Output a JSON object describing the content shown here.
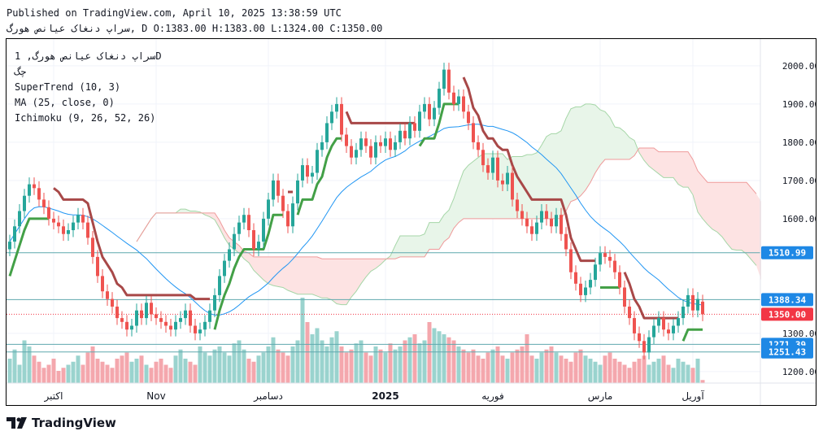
{
  "header": {
    "line1": "Published on TradingView.com, April 10, 2025 13:38:59 UTC",
    "line2": "سراپ دنغاک عیانص هورگ, D O:1383.00 H:1383.00 L:1324.00 C:1350.00"
  },
  "legend": {
    "symbol": "سراپ دنغاک عیانص هورگ, 1D",
    "ticker": "چگ",
    "supertrend": "SuperTrend (10, 3)",
    "ma": "MA (25, close, 0)",
    "ichimoku": "Ichimoku (9, 26, 52, 26)"
  },
  "footer": {
    "brand": "TradingView"
  },
  "colors": {
    "up": "#26a69a",
    "down": "#ef5350",
    "up_vol": "#9ad3ce",
    "down_vol": "#f4a7ad",
    "ma": "#2196f3",
    "st_up": "#43a047",
    "st_down": "#a84848",
    "cloud_green": "#e8f5e9",
    "cloud_red": "#fde3e3",
    "hline": "#5fa8ae",
    "price_tag": "#f23645",
    "level_tag": "#1e88e5"
  },
  "chart_data": {
    "type": "candlestick",
    "title": "سراپ دنغاک عیانص هورگ, 1D",
    "ohlc": {
      "open": 1383.0,
      "high": 1383.0,
      "low": 1324.0,
      "close": 1350.0
    },
    "y_axis": {
      "ticks": [
        2000.0,
        1900.0,
        1800.0,
        1700.0,
        1600.0,
        1300.0,
        1200.0
      ],
      "tick_labels": [
        "2000.00",
        "1900.00",
        "1800.00",
        "1700.00",
        "1600.00",
        "1300.00",
        "1200.00"
      ],
      "range": [
        1170,
        2070
      ]
    },
    "x_axis": {
      "labels": [
        "اکتبر",
        "Nov",
        "دسامبر",
        "2025",
        "فوریه",
        "مارس",
        "آوریل"
      ],
      "label_index": [
        9,
        30,
        53,
        77,
        99,
        121,
        140
      ]
    },
    "price_levels": [
      {
        "value": 1510.99,
        "label": "1510.99",
        "kind": "level"
      },
      {
        "value": 1388.34,
        "label": "1388.34",
        "kind": "level"
      },
      {
        "value": 1350.0,
        "label": "1350.00",
        "kind": "price"
      },
      {
        "value": 1271.39,
        "label": "1271.39",
        "kind": "level"
      },
      {
        "value": 1251.43,
        "label": "1251.43",
        "kind": "level"
      }
    ],
    "closes": [
      1540,
      1580,
      1620,
      1660,
      1690,
      1680,
      1650,
      1630,
      1600,
      1590,
      1580,
      1560,
      1570,
      1590,
      1610,
      1590,
      1550,
      1500,
      1450,
      1410,
      1390,
      1370,
      1340,
      1330,
      1310,
      1320,
      1360,
      1340,
      1380,
      1350,
      1340,
      1330,
      1320,
      1310,
      1330,
      1340,
      1360,
      1320,
      1300,
      1310,
      1330,
      1360,
      1400,
      1450,
      1490,
      1520,
      1560,
      1590,
      1610,
      1570,
      1520,
      1540,
      1600,
      1650,
      1700,
      1660,
      1620,
      1580,
      1640,
      1700,
      1740,
      1710,
      1720,
      1780,
      1800,
      1850,
      1880,
      1900,
      1820,
      1790,
      1760,
      1780,
      1810,
      1790,
      1760,
      1800,
      1790,
      1810,
      1780,
      1800,
      1830,
      1810,
      1850,
      1830,
      1880,
      1900,
      1860,
      1890,
      1940,
      1990,
      1930,
      1900,
      1920,
      1880,
      1850,
      1800,
      1780,
      1740,
      1720,
      1760,
      1700,
      1690,
      1720,
      1650,
      1620,
      1600,
      1580,
      1560,
      1590,
      1620,
      1600,
      1580,
      1610,
      1560,
      1520,
      1460,
      1430,
      1400,
      1420,
      1440,
      1480,
      1510,
      1500,
      1490,
      1460,
      1420,
      1370,
      1340,
      1300,
      1280,
      1250,
      1290,
      1320,
      1340,
      1310,
      1300,
      1320,
      1340,
      1370,
      1400,
      1360,
      1390,
      1350
    ],
    "opens": [
      1520,
      1540,
      1580,
      1620,
      1660,
      1690,
      1680,
      1650,
      1630,
      1600,
      1590,
      1580,
      1560,
      1570,
      1590,
      1610,
      1590,
      1550,
      1500,
      1450,
      1410,
      1390,
      1370,
      1340,
      1330,
      1310,
      1320,
      1360,
      1340,
      1380,
      1350,
      1340,
      1330,
      1320,
      1310,
      1330,
      1340,
      1360,
      1320,
      1300,
      1310,
      1330,
      1360,
      1400,
      1450,
      1490,
      1520,
      1560,
      1590,
      1610,
      1570,
      1520,
      1540,
      1600,
      1650,
      1700,
      1660,
      1620,
      1580,
      1640,
      1700,
      1740,
      1710,
      1720,
      1780,
      1800,
      1850,
      1880,
      1900,
      1820,
      1790,
      1760,
      1780,
      1810,
      1790,
      1760,
      1800,
      1790,
      1810,
      1780,
      1800,
      1830,
      1810,
      1850,
      1830,
      1880,
      1900,
      1860,
      1890,
      1940,
      1990,
      1930,
      1900,
      1920,
      1880,
      1850,
      1800,
      1780,
      1740,
      1720,
      1760,
      1700,
      1690,
      1720,
      1650,
      1620,
      1600,
      1580,
      1560,
      1590,
      1620,
      1600,
      1580,
      1610,
      1560,
      1520,
      1460,
      1430,
      1400,
      1420,
      1440,
      1480,
      1510,
      1500,
      1490,
      1460,
      1420,
      1370,
      1340,
      1300,
      1280,
      1250,
      1290,
      1320,
      1340,
      1310,
      1300,
      1320,
      1340,
      1370,
      1400,
      1360,
      1383
    ],
    "volumes": [
      40,
      55,
      30,
      70,
      60,
      45,
      35,
      25,
      30,
      40,
      20,
      25,
      30,
      35,
      45,
      30,
      50,
      60,
      40,
      35,
      30,
      25,
      40,
      45,
      50,
      35,
      40,
      45,
      30,
      25,
      35,
      40,
      30,
      25,
      45,
      55,
      40,
      35,
      30,
      60,
      50,
      45,
      55,
      60,
      50,
      45,
      65,
      70,
      55,
      40,
      35,
      45,
      50,
      60,
      75,
      55,
      50,
      45,
      60,
      70,
      140,
      100,
      80,
      90,
      70,
      60,
      75,
      85,
      60,
      50,
      55,
      65,
      70,
      50,
      45,
      60,
      55,
      50,
      65,
      55,
      60,
      70,
      75,
      80,
      65,
      70,
      100,
      90,
      85,
      80,
      75,
      70,
      60,
      55,
      50,
      55,
      45,
      40,
      50,
      55,
      60,
      45,
      40,
      50,
      55,
      60,
      80,
      45,
      40,
      50,
      55,
      60,
      50,
      45,
      40,
      35,
      50,
      55,
      45,
      40,
      35,
      30,
      45,
      50,
      40,
      35,
      30,
      25,
      35,
      40,
      45,
      30,
      35,
      40,
      45,
      30,
      25,
      40,
      35,
      30,
      25,
      40,
      5
    ]
  }
}
